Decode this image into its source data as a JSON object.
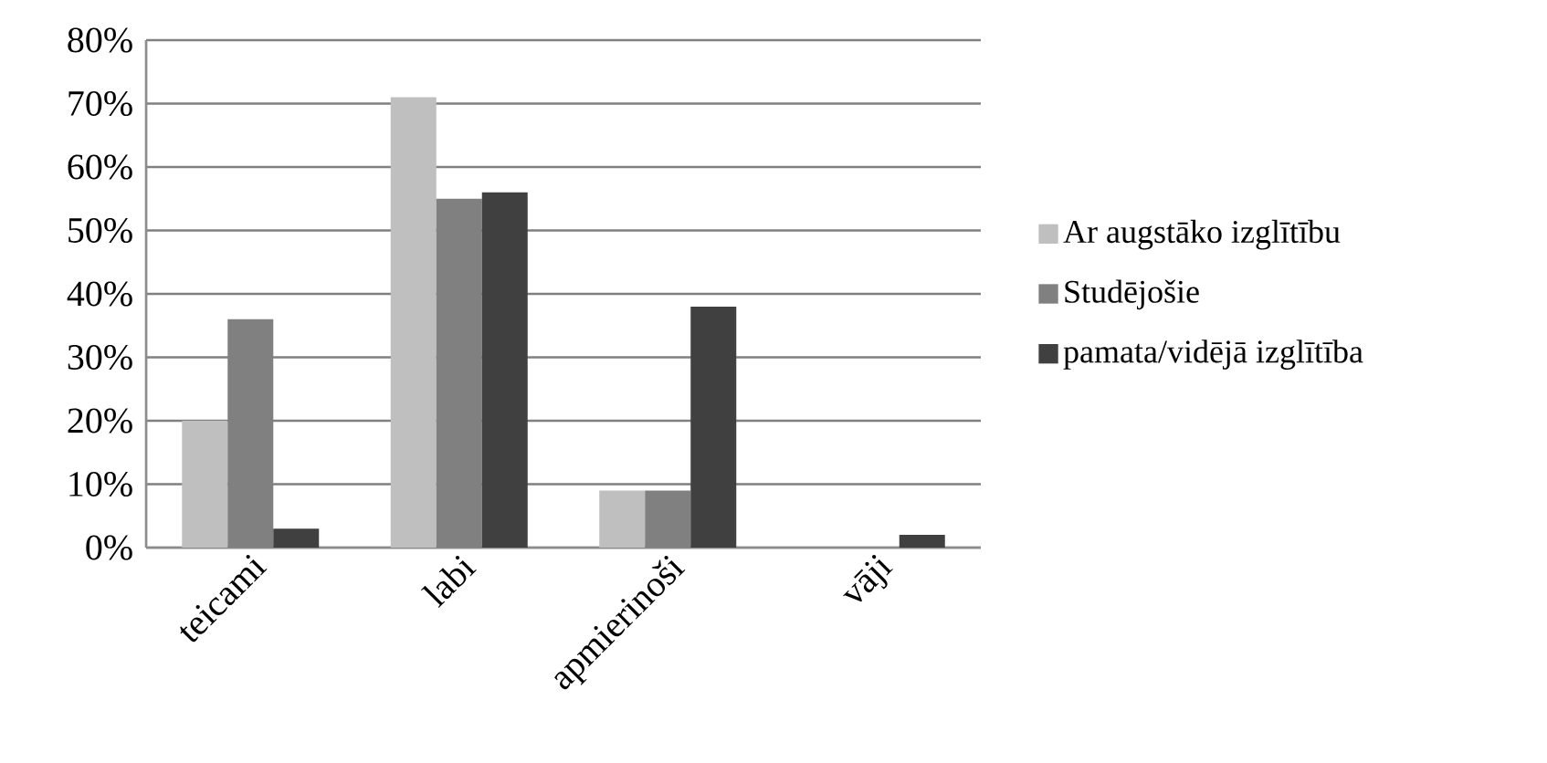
{
  "chart_data": {
    "type": "bar",
    "categories": [
      "teicami",
      "labi",
      "apmierinoši",
      "vāji"
    ],
    "series": [
      {
        "name": "Ar augstāko izglītību",
        "color": "#bfbfbf",
        "values": [
          20,
          71,
          9,
          0
        ]
      },
      {
        "name": "Studējošie",
        "color": "#808080",
        "values": [
          36,
          55,
          9,
          0
        ]
      },
      {
        "name": "pamata/vidējā izglītība",
        "color": "#404040",
        "values": [
          3,
          56,
          38,
          2
        ]
      }
    ],
    "ylim": [
      0,
      80
    ],
    "yticks": [
      {
        "value": 0,
        "label": "0%"
      },
      {
        "value": 10,
        "label": "10%"
      },
      {
        "value": 20,
        "label": "20%"
      },
      {
        "value": 30,
        "label": "30%"
      },
      {
        "value": 40,
        "label": "40%"
      },
      {
        "value": 50,
        "label": "50%"
      },
      {
        "value": 60,
        "label": "60%"
      },
      {
        "value": 70,
        "label": "70%"
      },
      {
        "value": 80,
        "label": "80%"
      }
    ],
    "grid": "y",
    "legend": "right"
  }
}
